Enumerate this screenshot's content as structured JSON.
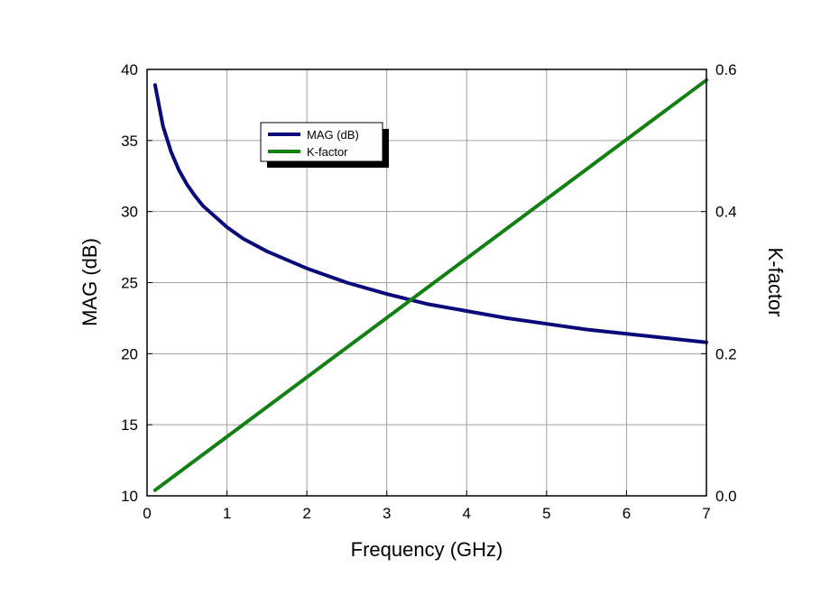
{
  "chart_data": {
    "type": "line",
    "xlabel": "Frequency (GHz)",
    "ylabel_left": "MAG (dB)",
    "ylabel_right": "K-factor",
    "xlim": [
      0,
      7
    ],
    "ylim_left": [
      10,
      40
    ],
    "ylim_right": [
      0.0,
      0.6
    ],
    "x_ticks": [
      "0",
      "1",
      "2",
      "3",
      "4",
      "5",
      "6",
      "7"
    ],
    "y_left_ticks": [
      "10",
      "15",
      "20",
      "25",
      "30",
      "35",
      "40"
    ],
    "y_right_ticks": [
      "0.0",
      "0.2",
      "0.4",
      "0.6"
    ],
    "grid": true,
    "legend_position": "top-left",
    "series": [
      {
        "name": "MAG (dB)",
        "axis": "left",
        "color": "#0a0a7a",
        "x": [
          0.1,
          0.2,
          0.3,
          0.4,
          0.5,
          0.6,
          0.7,
          0.8,
          1.0,
          1.2,
          1.5,
          2.0,
          2.5,
          3.0,
          3.5,
          4.0,
          4.5,
          5.0,
          5.5,
          6.0,
          6.5,
          7.0
        ],
        "y": [
          38.9,
          36.0,
          34.2,
          32.9,
          31.9,
          31.1,
          30.4,
          29.9,
          28.9,
          28.1,
          27.2,
          26.0,
          25.0,
          24.2,
          23.5,
          23.0,
          22.5,
          22.1,
          21.7,
          21.4,
          21.1,
          20.8
        ]
      },
      {
        "name": "K-factor",
        "axis": "right",
        "color": "#128012",
        "x": [
          0.1,
          7.0
        ],
        "y": [
          0.008,
          0.585
        ]
      }
    ]
  }
}
